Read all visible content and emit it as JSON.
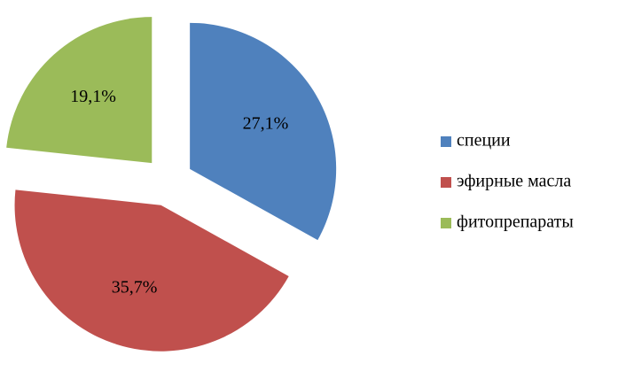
{
  "chart_data": {
    "type": "pie",
    "categories": [
      "специи",
      "эфирные масла",
      "фитопрепараты"
    ],
    "values": [
      27.1,
      35.7,
      19.1
    ],
    "value_labels": [
      "27,1%",
      "35,7%",
      "19,1%"
    ],
    "colors": [
      "#4f81bd",
      "#c0504d",
      "#9bbb59"
    ],
    "legend": "right"
  }
}
